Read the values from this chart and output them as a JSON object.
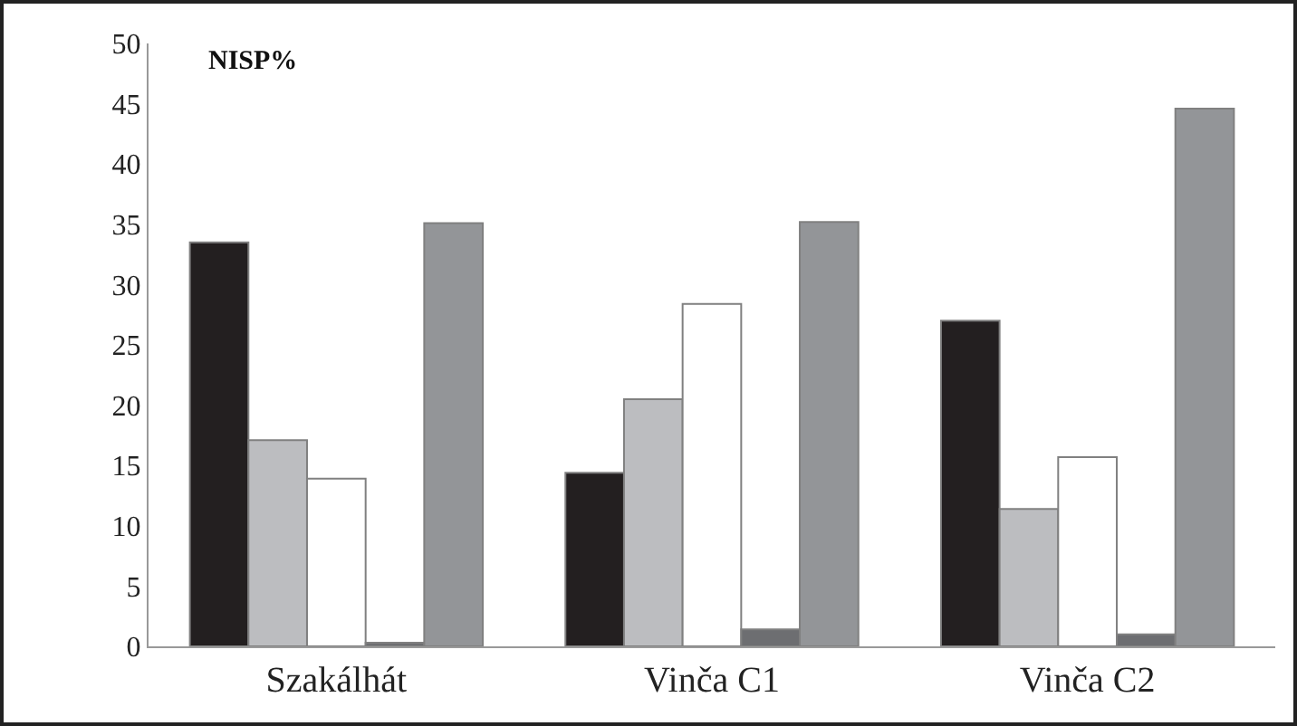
{
  "chart_data": {
    "type": "bar",
    "annotations": [
      "NISP%"
    ],
    "categories": [
      "Szakálhát",
      "Vinča C1",
      "Vinča C2"
    ],
    "series": [
      {
        "color": "#231f20",
        "values": [
          33.5,
          14.4,
          27.0
        ]
      },
      {
        "color": "#bcbdc0",
        "values": [
          17.1,
          20.5,
          11.4
        ]
      },
      {
        "color": "#ffffff",
        "values": [
          13.9,
          28.4,
          15.7
        ]
      },
      {
        "color": "#6d6e71",
        "values": [
          0.3,
          1.4,
          1.0
        ]
      },
      {
        "color": "#939598",
        "values": [
          35.1,
          35.2,
          44.6
        ]
      }
    ],
    "ylim": [
      0,
      50
    ],
    "yticks": [
      0,
      5,
      10,
      15,
      20,
      25,
      30,
      35,
      40,
      45,
      50
    ]
  }
}
